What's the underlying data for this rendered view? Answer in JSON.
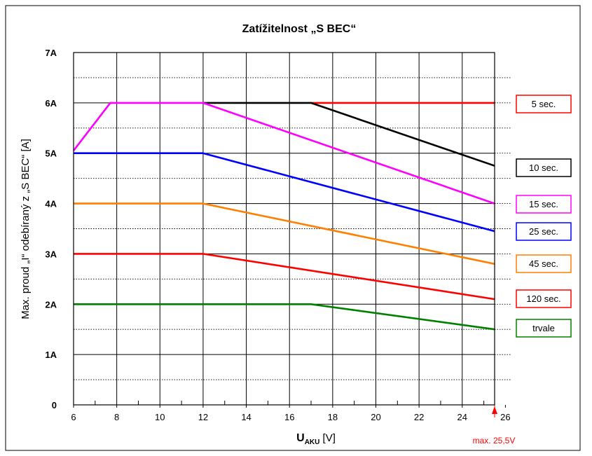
{
  "chart_data": {
    "type": "line",
    "title": "Zatížitelnost „S BEC“",
    "xlabel_main": "U",
    "xlabel_sub": "AKU",
    "xlabel_unit": " [V]",
    "ylabel": "Max. proud „I“ odebíraný z „S BEC“ [A]",
    "xlim": [
      6,
      26
    ],
    "ylim": [
      0,
      7
    ],
    "x_ticks": [
      6,
      8,
      10,
      12,
      14,
      16,
      18,
      20,
      22,
      24,
      26
    ],
    "x_tick_labels": [
      "6",
      "8",
      "10",
      "12",
      "14",
      "16",
      "18",
      "20",
      "22",
      "24",
      "26"
    ],
    "y_ticks": [
      0,
      1,
      2,
      3,
      4,
      5,
      6,
      7
    ],
    "y_tick_labels": [
      "0",
      "1A",
      "2A",
      "3A",
      "4A",
      "5A",
      "6A",
      "7A"
    ],
    "grid": true,
    "legend_placement": "right",
    "series": [
      {
        "name": "5 sec.",
        "color": "#ff0000",
        "points": [
          [
            17,
            6.0
          ],
          [
            25.5,
            6.0
          ]
        ]
      },
      {
        "name": "10 sec.",
        "color": "#000000",
        "points": [
          [
            12,
            6.0
          ],
          [
            17,
            6.0
          ],
          [
            25.5,
            4.75
          ]
        ]
      },
      {
        "name": "15 sec.",
        "color": "#ff00ff",
        "points": [
          [
            6,
            5.05
          ],
          [
            7.7,
            6.0
          ],
          [
            12,
            6.0
          ],
          [
            25.5,
            4.0
          ]
        ]
      },
      {
        "name": "25 sec.",
        "color": "#0000ff",
        "points": [
          [
            6,
            5.0
          ],
          [
            12,
            5.0
          ],
          [
            25.5,
            3.45
          ]
        ]
      },
      {
        "name": "45 sec.",
        "color": "#ff7f00",
        "points": [
          [
            6,
            4.0
          ],
          [
            12,
            4.0
          ],
          [
            25.5,
            2.8
          ]
        ]
      },
      {
        "name": "120 sec.",
        "color": "#ff0000",
        "points": [
          [
            6,
            3.0
          ],
          [
            12,
            3.0
          ],
          [
            25.5,
            2.1
          ]
        ]
      },
      {
        "name": "trvale",
        "color": "#008000",
        "points": [
          [
            6,
            2.0
          ],
          [
            17,
            2.0
          ],
          [
            25.5,
            1.5
          ]
        ]
      }
    ],
    "max_marker": {
      "x": 25.5,
      "label": "max. 25,5V",
      "color": "#ff0000"
    }
  }
}
